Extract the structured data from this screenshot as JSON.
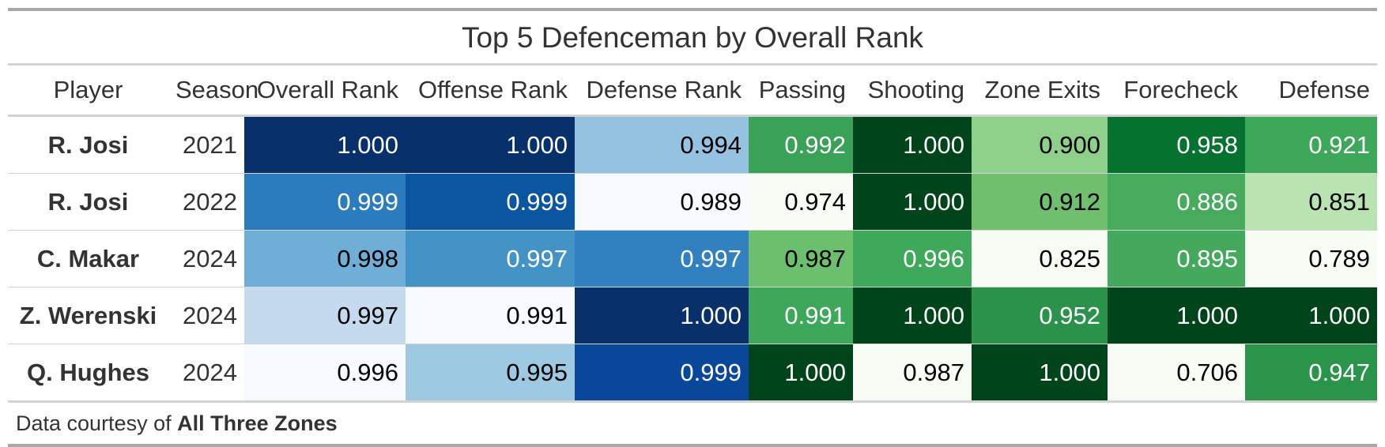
{
  "chart_data": {
    "type": "table",
    "title": "Top 5 Defenceman by Overall Rank",
    "columns": [
      "Player",
      "Season",
      "Overall Rank",
      "Offense Rank",
      "Defense Rank",
      "Passing",
      "Shooting",
      "Zone Exits",
      "Forecheck",
      "Defense"
    ],
    "rows": [
      {
        "player": "R. Josi",
        "season": "2021",
        "values": [
          "1.000",
          "1.000",
          "0.994",
          "0.992",
          "1.000",
          "0.900",
          "0.958",
          "0.921"
        ]
      },
      {
        "player": "R. Josi",
        "season": "2022",
        "values": [
          "0.999",
          "0.999",
          "0.989",
          "0.974",
          "1.000",
          "0.912",
          "0.886",
          "0.851"
        ]
      },
      {
        "player": "C. Makar",
        "season": "2024",
        "values": [
          "0.998",
          "0.997",
          "0.997",
          "0.987",
          "0.996",
          "0.825",
          "0.895",
          "0.789"
        ]
      },
      {
        "player": "Z. Werenski",
        "season": "2024",
        "values": [
          "0.997",
          "0.991",
          "1.000",
          "0.991",
          "1.000",
          "0.952",
          "1.000",
          "1.000"
        ]
      },
      {
        "player": "Q. Hughes",
        "season": "2024",
        "values": [
          "0.996",
          "0.995",
          "0.999",
          "1.000",
          "0.987",
          "1.000",
          "0.706",
          "0.947"
        ]
      }
    ],
    "cell_colors": [
      [
        "#08306b",
        "#08306b",
        "#95c2e0",
        "#39a257",
        "#00441b",
        "#8ecf8a",
        "#05722f",
        "#3da85a"
      ],
      [
        "#2b7cbf",
        "#0b56a0",
        "#f7fbff",
        "#f7fcf5",
        "#00441b",
        "#6fbf6f",
        "#47ab5d",
        "#b9e3b1"
      ],
      [
        "#6eaed7",
        "#4493c7",
        "#3181c1",
        "#6cbf6c",
        "#3ea85b",
        "#f7fcf5",
        "#44a95c",
        "#f7fcf5"
      ],
      [
        "#c5daee",
        "#f7fbff",
        "#08306b",
        "#3da85a",
        "#00441b",
        "#2a924a",
        "#00441b",
        "#00441b"
      ],
      [
        "#f7fbff",
        "#9dcae2",
        "#08479a",
        "#00441b",
        "#f7fcf5",
        "#00441b",
        "#f7fcf5",
        "#2b944b"
      ]
    ],
    "text_colors": [
      [
        "#ffffff",
        "#ffffff",
        "#000000",
        "#ffffff",
        "#ffffff",
        "#000000",
        "#ffffff",
        "#ffffff"
      ],
      [
        "#ffffff",
        "#ffffff",
        "#000000",
        "#000000",
        "#ffffff",
        "#000000",
        "#ffffff",
        "#000000"
      ],
      [
        "#000000",
        "#ffffff",
        "#ffffff",
        "#000000",
        "#ffffff",
        "#000000",
        "#ffffff",
        "#000000"
      ],
      [
        "#000000",
        "#000000",
        "#ffffff",
        "#ffffff",
        "#ffffff",
        "#ffffff",
        "#ffffff",
        "#ffffff"
      ],
      [
        "#000000",
        "#000000",
        "#ffffff",
        "#ffffff",
        "#000000",
        "#ffffff",
        "#000000",
        "#ffffff"
      ]
    ],
    "source_prefix": "Data courtesy of",
    "source_name": "All Three Zones"
  }
}
